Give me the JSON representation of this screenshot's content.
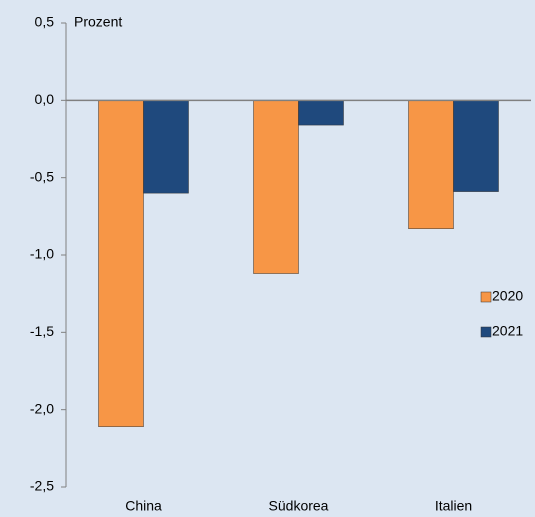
{
  "chart_data": {
    "type": "bar",
    "y_label": "Prozent",
    "categories": [
      "China",
      "Südkorea",
      "Italien"
    ],
    "series": [
      {
        "name": "2020",
        "color": "#f79646",
        "values": [
          -2.11,
          -1.12,
          -0.83
        ]
      },
      {
        "name": "2021",
        "color": "#1f497d",
        "values": [
          -0.6,
          -0.16,
          -0.59
        ]
      }
    ],
    "ylim": [
      -2.5,
      0.5
    ],
    "yticks": [
      {
        "value": 0.5,
        "label": "0,5"
      },
      {
        "value": 0,
        "label": "0,0"
      },
      {
        "value": -0.5,
        "label": "-0,5"
      },
      {
        "value": -1,
        "label": "-1,0"
      },
      {
        "value": -1.5,
        "label": "-1,5"
      },
      {
        "value": -2,
        "label": "-2,0"
      },
      {
        "value": -2.5,
        "label": "-2,5"
      }
    ],
    "legend": "right"
  }
}
